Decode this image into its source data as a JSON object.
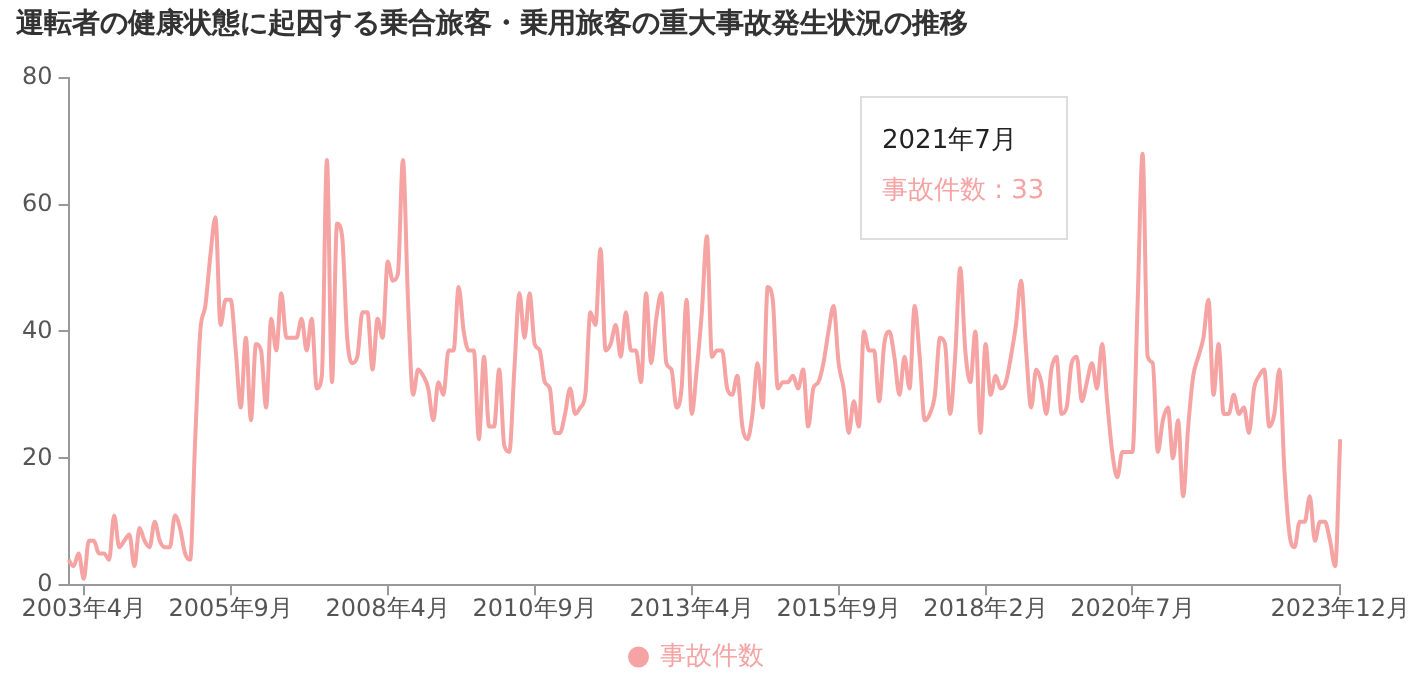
{
  "chart_data": {
    "type": "line",
    "title": "運転者の健康状態に起因する乗合旅客・乗用旅客の重大事故発生状況の推移",
    "categories": [
      null,
      null,
      null,
      "2003年4月",
      null,
      null,
      null,
      null,
      null,
      null,
      null,
      null,
      null,
      null,
      null,
      null,
      null,
      null,
      null,
      null,
      null,
      null,
      null,
      null,
      null,
      null,
      null,
      null,
      null,
      null,
      null,
      null,
      "2005年9月",
      null,
      null,
      null,
      null,
      null,
      null,
      null,
      null,
      null,
      null,
      null,
      null,
      null,
      null,
      null,
      null,
      null,
      null,
      null,
      null,
      null,
      null,
      null,
      null,
      null,
      null,
      null,
      null,
      null,
      null,
      "2008年4月",
      null,
      null,
      null,
      null,
      null,
      null,
      null,
      null,
      null,
      null,
      null,
      null,
      null,
      null,
      null,
      null,
      null,
      null,
      null,
      null,
      null,
      null,
      null,
      null,
      null,
      null,
      null,
      null,
      "2010年9月",
      null,
      null,
      null,
      null,
      null,
      null,
      null,
      null,
      null,
      null,
      null,
      null,
      null,
      null,
      null,
      null,
      null,
      null,
      null,
      null,
      null,
      null,
      null,
      null,
      null,
      null,
      null,
      null,
      null,
      null,
      "2013年4月",
      null,
      null,
      null,
      null,
      null,
      null,
      null,
      null,
      null,
      null,
      null,
      null,
      null,
      null,
      null,
      null,
      null,
      null,
      null,
      null,
      null,
      null,
      null,
      null,
      null,
      null,
      null,
      null,
      "2015年9月",
      null,
      null,
      null,
      null,
      null,
      null,
      null,
      null,
      null,
      null,
      null,
      null,
      null,
      null,
      null,
      null,
      null,
      null,
      null,
      null,
      null,
      null,
      null,
      null,
      null,
      null,
      null,
      null,
      "2018年2月",
      null,
      null,
      null,
      null,
      null,
      null,
      null,
      null,
      null,
      null,
      null,
      null,
      null,
      null,
      null,
      null,
      null,
      null,
      null,
      null,
      null,
      null,
      null,
      null,
      null,
      null,
      null,
      null,
      "2020年7月",
      null,
      null,
      null,
      null,
      null,
      null,
      null,
      null,
      null,
      null,
      null,
      null,
      null,
      null,
      null,
      null,
      null,
      null,
      null,
      null,
      null,
      null,
      null,
      null,
      null,
      null,
      null,
      null,
      null,
      null,
      null,
      null,
      null,
      null,
      null,
      null,
      null,
      null,
      null,
      null,
      "2023年12月"
    ],
    "series": [
      {
        "name": "事故件数",
        "color": "#f5a3a3",
        "values": [
          4,
          3,
          5,
          1,
          7,
          7,
          5,
          5,
          4,
          11,
          6,
          7,
          8,
          3,
          9,
          7,
          6,
          10,
          7,
          6,
          6,
          11,
          9,
          5,
          4,
          23,
          40,
          44,
          52,
          58,
          41,
          45,
          45,
          37,
          28,
          39,
          26,
          38,
          37,
          28,
          42,
          37,
          46,
          39,
          39,
          39,
          42,
          37,
          42,
          31,
          33,
          67,
          32,
          57,
          55,
          39,
          35,
          36,
          43,
          43,
          34,
          42,
          39,
          51,
          48,
          49,
          67,
          45,
          30,
          34,
          33,
          31,
          26,
          32,
          30,
          37,
          37,
          47,
          40,
          37,
          37,
          23,
          36,
          25,
          25,
          34,
          22,
          21,
          34,
          46,
          39,
          46,
          38,
          37,
          32,
          31,
          24,
          24,
          27,
          31,
          27,
          28,
          30,
          43,
          41,
          53,
          37,
          38,
          41,
          36,
          43,
          37,
          37,
          32,
          46,
          35,
          42,
          46,
          35,
          34,
          28,
          31,
          45,
          27,
          34,
          43,
          55,
          36,
          37,
          37,
          31,
          30,
          33,
          25,
          23,
          27,
          35,
          28,
          47,
          45,
          31,
          32,
          32,
          33,
          31,
          34,
          25,
          31,
          32,
          35,
          40,
          44,
          35,
          31,
          24,
          29,
          25,
          40,
          37,
          37,
          29,
          38,
          40,
          36,
          30,
          36,
          31,
          44,
          36,
          26,
          27,
          30,
          39,
          38,
          27,
          36,
          50,
          37,
          32,
          40,
          24,
          38,
          30,
          33,
          31,
          32,
          36,
          41,
          48,
          37,
          28,
          34,
          32,
          27,
          34,
          36,
          27,
          28,
          35,
          36,
          29,
          32,
          35,
          31,
          38,
          29,
          21,
          17,
          21,
          21,
          21,
          44,
          68,
          36,
          35,
          21,
          26,
          28,
          20,
          26,
          14,
          25,
          33,
          36,
          39,
          45,
          30,
          38,
          27,
          27,
          30,
          27,
          28,
          24,
          31,
          33,
          34,
          25,
          27,
          34,
          18,
          8,
          6,
          10,
          10,
          14,
          7,
          10,
          10,
          7,
          3,
          23
        ]
      }
    ],
    "ylim": [
      0,
      80
    ],
    "yticks": [
      0,
      20,
      40,
      60,
      80
    ],
    "legend": "bottom",
    "annotations": [
      "2021年7月",
      "事故件数 : 33"
    ]
  }
}
